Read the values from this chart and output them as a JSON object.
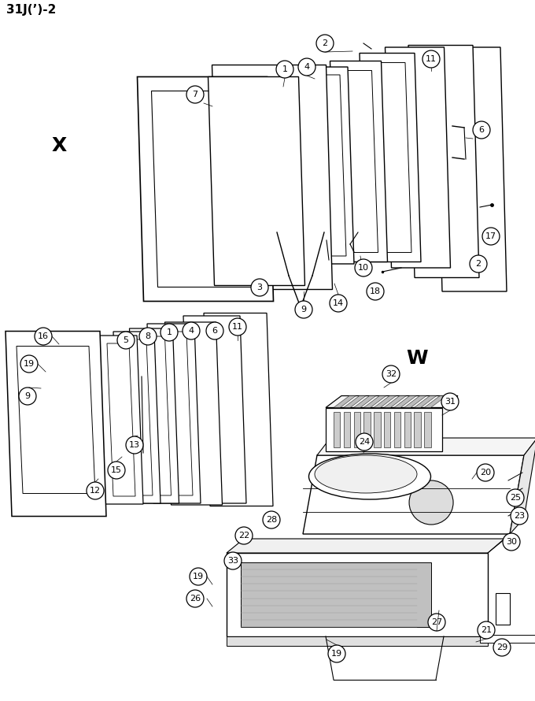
{
  "title": "31J(’)-2",
  "bg_color": "#ffffff",
  "line_color": "#000000",
  "label_X": "X",
  "label_W": "W",
  "fig_width": 6.8,
  "fig_height": 8.9,
  "dpi": 100
}
